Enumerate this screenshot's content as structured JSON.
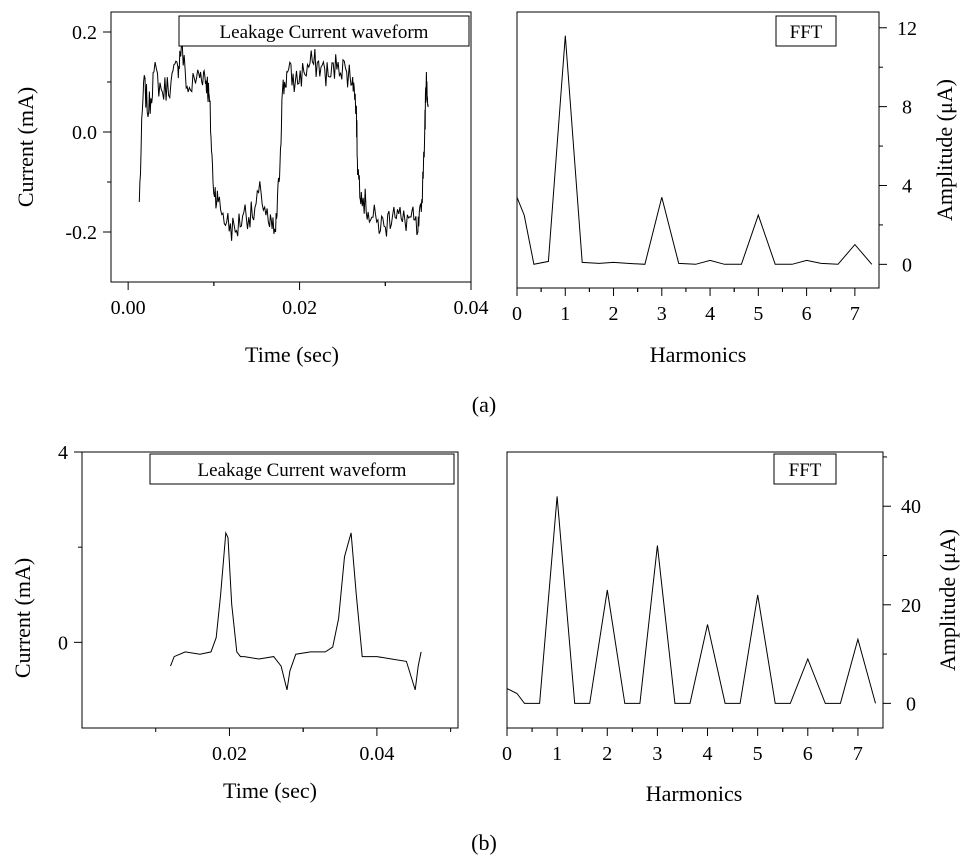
{
  "panels": [
    {
      "id": "a",
      "caption": "(a)",
      "waveform": {
        "legend": "Leakage Current waveform",
        "xlabel": "Time (sec)",
        "ylabel": "Current (mA)",
        "xticks": [
          {
            "v": 0.0,
            "label": "0.00"
          },
          {
            "v": 0.02,
            "label": "0.02"
          },
          {
            "v": 0.04,
            "label": "0.04"
          }
        ],
        "yticks": [
          {
            "v": 0.2,
            "label": "0.2"
          },
          {
            "v": 0.0,
            "label": "0.0"
          },
          {
            "v": -0.2,
            "label": "-0.2"
          }
        ],
        "xlim": [
          -0.002,
          0.04
        ],
        "ylim": [
          -0.3,
          0.24
        ]
      },
      "fft": {
        "legend": "FFT",
        "xlabel": "Harmonics",
        "ylabel": "Amplitude (μA)",
        "xticks": [
          "0",
          "1",
          "2",
          "3",
          "4",
          "5",
          "6",
          "7"
        ],
        "yticks": [
          {
            "v": 0,
            "label": "0"
          },
          {
            "v": 4,
            "label": "4"
          },
          {
            "v": 8,
            "label": "8"
          },
          {
            "v": 12,
            "label": "12"
          }
        ],
        "xlim": [
          0,
          7.5
        ],
        "ylim": [
          -1.2,
          12.8
        ]
      }
    },
    {
      "id": "b",
      "caption": "(b)",
      "waveform": {
        "legend": "Leakage Current waveform",
        "xlabel": "Time (sec)",
        "ylabel": "Current (mA)",
        "xticks": [
          {
            "v": 0.02,
            "label": "0.02"
          },
          {
            "v": 0.04,
            "label": "0.04"
          }
        ],
        "yticks": [
          {
            "v": 4,
            "label": "4"
          },
          {
            "v": 0,
            "label": "0"
          }
        ],
        "xlim": [
          0.0,
          0.051
        ],
        "ylim": [
          -1.8,
          4.0
        ]
      },
      "fft": {
        "legend": "FFT",
        "xlabel": "Harmonics",
        "ylabel": "Amplitude (μA)",
        "xticks": [
          "0",
          "1",
          "2",
          "3",
          "4",
          "5",
          "6",
          "7"
        ],
        "yticks": [
          {
            "v": 0,
            "label": "0"
          },
          {
            "v": 20,
            "label": "20"
          },
          {
            "v": 40,
            "label": "40"
          }
        ],
        "xlim": [
          0,
          7.5
        ],
        "ylim": [
          -5,
          51
        ]
      }
    }
  ],
  "chart_data": [
    {
      "type": "line",
      "panel": "a-left",
      "legend": "Leakage Current waveform",
      "xlabel": "Time (sec)",
      "ylabel": "Current (mA)",
      "series": [
        {
          "x": [
            0.0013,
            0.0018,
            0.0024,
            0.003,
            0.004,
            0.005,
            0.0058,
            0.0062,
            0.007,
            0.008,
            0.0088,
            0.0092,
            0.0095,
            0.0099,
            0.0105,
            0.0115,
            0.0125,
            0.0135,
            0.0145,
            0.0155,
            0.0165,
            0.0172,
            0.0176,
            0.018,
            0.0186,
            0.0195,
            0.0205,
            0.0215,
            0.0225,
            0.0235,
            0.0245,
            0.0255,
            0.0262,
            0.0266,
            0.0268,
            0.0272,
            0.028,
            0.029,
            0.03,
            0.031,
            0.032,
            0.033,
            0.0338,
            0.0342,
            0.0346,
            0.0348,
            0.035
          ],
          "y": [
            -0.14,
            0.1,
            0.04,
            0.12,
            0.08,
            0.1,
            0.13,
            0.17,
            0.08,
            0.11,
            0.12,
            0.1,
            0.06,
            -0.1,
            -0.14,
            -0.18,
            -0.2,
            -0.16,
            -0.17,
            -0.12,
            -0.19,
            -0.2,
            -0.1,
            0.08,
            0.12,
            0.1,
            0.12,
            0.14,
            0.13,
            0.11,
            0.14,
            0.12,
            0.11,
            0.05,
            -0.08,
            -0.12,
            -0.16,
            -0.18,
            -0.19,
            -0.15,
            -0.18,
            -0.17,
            -0.2,
            -0.16,
            0.0,
            0.12,
            0.05
          ]
        }
      ]
    },
    {
      "type": "line",
      "panel": "a-right",
      "legend": "FFT",
      "xlabel": "Harmonics",
      "ylabel": "Amplitude (μA)",
      "series": [
        {
          "x": [
            0,
            0.15,
            0.35,
            0.65,
            1,
            1.35,
            1.7,
            2,
            2.3,
            2.65,
            3,
            3.35,
            3.7,
            4,
            4.3,
            4.65,
            5,
            5.35,
            5.7,
            6,
            6.3,
            6.65,
            7,
            7.35
          ],
          "y": [
            3.4,
            2.5,
            0.0,
            0.15,
            11.6,
            0.1,
            0.05,
            0.1,
            0.05,
            0.0,
            3.4,
            0.05,
            0.0,
            0.2,
            0.0,
            0.0,
            2.5,
            0.0,
            0.0,
            0.2,
            0.05,
            0.0,
            1.0,
            0.0
          ]
        }
      ]
    },
    {
      "type": "line",
      "panel": "b-left",
      "legend": "Leakage Current waveform",
      "xlabel": "Time (sec)",
      "ylabel": "Current (mA)",
      "series": [
        {
          "x": [
            0.012,
            0.0125,
            0.014,
            0.016,
            0.0175,
            0.0182,
            0.0188,
            0.0195,
            0.0198,
            0.0203,
            0.021,
            0.0215,
            0.022,
            0.024,
            0.026,
            0.027,
            0.0278,
            0.0282,
            0.029,
            0.031,
            0.033,
            0.034,
            0.0348,
            0.0356,
            0.0365,
            0.0372,
            0.038,
            0.04,
            0.042,
            0.044,
            0.0452,
            0.0456,
            0.046
          ],
          "y": [
            -0.5,
            -0.3,
            -0.2,
            -0.25,
            -0.2,
            0.1,
            1.0,
            2.3,
            2.2,
            0.8,
            -0.2,
            -0.3,
            -0.3,
            -0.35,
            -0.3,
            -0.5,
            -1.0,
            -0.6,
            -0.25,
            -0.2,
            -0.2,
            -0.1,
            0.5,
            1.8,
            2.3,
            1.0,
            -0.3,
            -0.3,
            -0.35,
            -0.4,
            -1.0,
            -0.5,
            -0.2
          ]
        }
      ]
    },
    {
      "type": "line",
      "panel": "b-right",
      "legend": "FFT",
      "xlabel": "Harmonics",
      "ylabel": "Amplitude (μA)",
      "series": [
        {
          "x": [
            0,
            0.2,
            0.35,
            0.65,
            1,
            1.35,
            1.65,
            2,
            2.35,
            2.65,
            3,
            3.35,
            3.65,
            4,
            4.35,
            4.65,
            5,
            5.35,
            5.65,
            6,
            6.35,
            6.65,
            7,
            7.35
          ],
          "y": [
            3,
            2,
            0,
            0,
            42,
            0,
            0,
            23,
            0,
            0,
            32,
            0,
            0,
            16,
            0,
            0,
            22,
            0,
            0,
            9,
            0,
            0,
            13,
            0
          ]
        }
      ]
    }
  ]
}
